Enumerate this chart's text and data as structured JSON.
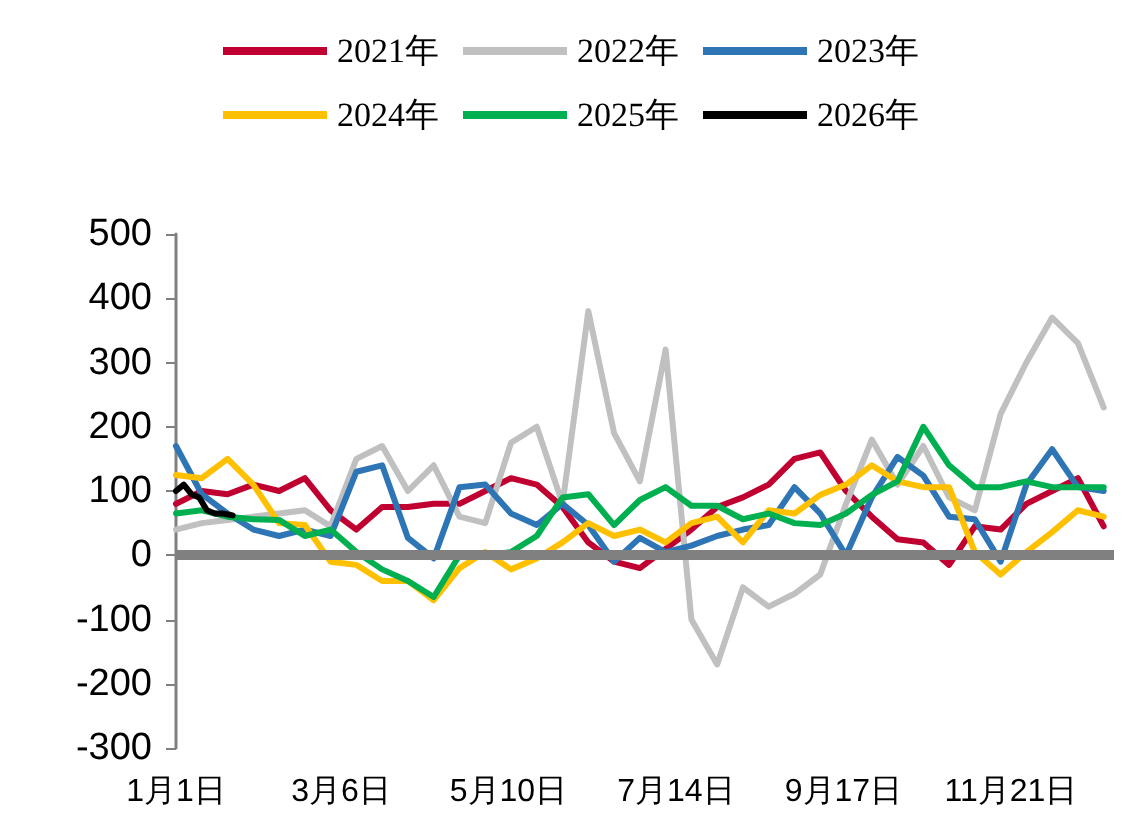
{
  "chart_data": {
    "type": "line",
    "x": [
      "--01-01",
      "--01-11",
      "--01-21",
      "--01-31",
      "--02-10",
      "--02-20",
      "--03-02",
      "--03-12",
      "--03-22",
      "--04-01",
      "--04-11",
      "--04-21",
      "--05-01",
      "--05-11",
      "--05-21",
      "--05-31",
      "--06-10",
      "--06-20",
      "--06-30",
      "--07-10",
      "--07-20",
      "--07-30",
      "--08-09",
      "--08-19",
      "--08-29",
      "--09-08",
      "--09-18",
      "--09-28",
      "--10-08",
      "--10-18",
      "--10-28",
      "--11-07",
      "--11-17",
      "--11-27",
      "--12-07",
      "--12-17",
      "--12-27"
    ],
    "series": [
      {
        "name": "2021年",
        "color": "#c00030",
        "values": [
          80,
          100,
          95,
          110,
          100,
          120,
          70,
          40,
          75,
          75,
          80,
          80,
          100,
          120,
          110,
          75,
          20,
          -10,
          -20,
          10,
          40,
          75,
          90,
          110,
          150,
          160,
          100,
          60,
          25,
          20,
          -15,
          45,
          40,
          80,
          100,
          120,
          45
        ]
      },
      {
        "name": "2022年",
        "color": "#c0c0c0",
        "values": [
          40,
          50,
          55,
          60,
          65,
          70,
          45,
          150,
          170,
          100,
          140,
          60,
          50,
          175,
          200,
          80,
          380,
          190,
          115,
          320,
          -100,
          -170,
          -50,
          -80,
          -60,
          -30,
          80,
          180,
          110,
          170,
          90,
          70,
          220,
          300,
          370,
          330,
          230
        ]
      },
      {
        "name": "2023年",
        "color": "#2e75b6",
        "values": [
          170,
          95,
          65,
          40,
          30,
          40,
          30,
          130,
          140,
          27,
          -5,
          106,
          110,
          65,
          47,
          80,
          47,
          -10,
          27,
          5,
          15,
          30,
          40,
          47,
          106,
          65,
          0,
          90,
          153,
          124,
          60,
          56,
          -10,
          110,
          165,
          106,
          100
        ]
      },
      {
        "name": "2024年",
        "color": "#ffc000",
        "values": [
          125,
          120,
          150,
          110,
          50,
          47,
          -10,
          -15,
          -40,
          -40,
          -70,
          -20,
          5,
          -22,
          -5,
          20,
          50,
          30,
          40,
          20,
          50,
          60,
          20,
          70,
          65,
          94,
          110,
          140,
          115,
          106,
          106,
          5,
          -30,
          5,
          36,
          70,
          60
        ]
      },
      {
        "name": "2025年",
        "color": "#00b050",
        "values": [
          65,
          70,
          60,
          56,
          55,
          30,
          40,
          5,
          -22,
          -40,
          -65,
          0,
          0,
          5,
          30,
          90,
          95,
          47,
          86,
          106,
          77,
          77,
          56,
          65,
          50,
          47,
          65,
          94,
          115,
          200,
          140,
          106,
          106,
          115,
          106,
          106,
          106
        ]
      },
      {
        "name": "2026年",
        "color": "#000000",
        "x": [
          "--01-01",
          "--01-04",
          "--01-07",
          "--01-10",
          "--01-13",
          "--01-16",
          "--01-19",
          "--01-23"
        ],
        "values": [
          100,
          110,
          95,
          90,
          70,
          65,
          65,
          62
        ]
      }
    ],
    "xlim": [
      "--01-01",
      "--12-31"
    ],
    "xticks": [
      {
        "value": "--01-01",
        "label": "1月1日"
      },
      {
        "value": "--03-06",
        "label": "3月6日"
      },
      {
        "value": "--05-10",
        "label": "5月10日"
      },
      {
        "value": "--07-14",
        "label": "7月14日"
      },
      {
        "value": "--09-17",
        "label": "9月17日"
      },
      {
        "value": "--11-21",
        "label": "11月21日"
      }
    ],
    "ylim": [
      -300,
      500
    ],
    "yticks": [
      -300,
      -200,
      -100,
      0,
      100,
      200,
      300,
      400,
      500
    ],
    "ref_lines": [
      {
        "axis": "y",
        "value": 0,
        "color": "#808080"
      }
    ],
    "legend": "top",
    "grid": false,
    "marker": "none",
    "line_style": "solid"
  }
}
